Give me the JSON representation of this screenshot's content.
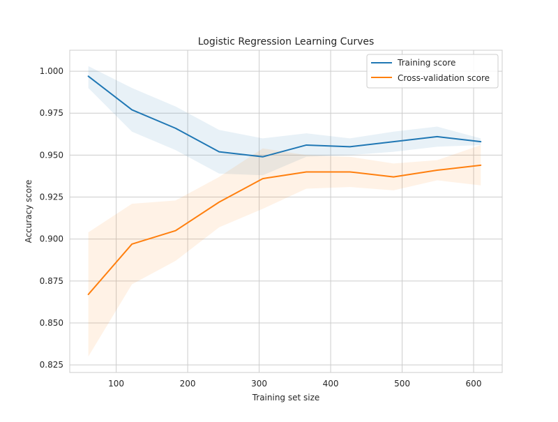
{
  "chart_data": {
    "type": "line",
    "title": "Logistic Regression Learning Curves",
    "xlabel": "Training set size",
    "ylabel": "Accuracy score",
    "xlim": [
      35,
      640
    ],
    "ylim": [
      0.8205,
      1.0125
    ],
    "grid": true,
    "legend_placement": "top-right",
    "x": [
      61,
      122,
      183,
      244,
      305,
      366,
      427,
      488,
      549,
      610
    ],
    "x_ticks": [
      100,
      200,
      300,
      400,
      500,
      600
    ],
    "y_ticks": [
      0.825,
      0.85,
      0.875,
      0.9,
      0.925,
      0.95,
      0.975,
      1.0
    ],
    "x_tick_labels": [
      "100",
      "200",
      "300",
      "400",
      "500",
      "600"
    ],
    "y_tick_labels": [
      "0.825",
      "0.850",
      "0.875",
      "0.900",
      "0.925",
      "0.950",
      "0.975",
      "1.000"
    ],
    "series": [
      {
        "name": "Training score",
        "color": "#1f77b4",
        "values": [
          0.997,
          0.977,
          0.966,
          0.952,
          0.949,
          0.956,
          0.955,
          0.958,
          0.961,
          0.958
        ],
        "lower": [
          0.99,
          0.964,
          0.953,
          0.939,
          0.938,
          0.949,
          0.95,
          0.952,
          0.955,
          0.956
        ],
        "upper": [
          1.003,
          0.99,
          0.979,
          0.965,
          0.96,
          0.963,
          0.96,
          0.964,
          0.967,
          0.96
        ]
      },
      {
        "name": "Cross-validation score",
        "color": "#ff7f0e",
        "values": [
          0.867,
          0.897,
          0.905,
          0.922,
          0.936,
          0.94,
          0.94,
          0.937,
          0.941,
          0.944
        ],
        "lower": [
          0.83,
          0.873,
          0.887,
          0.907,
          0.918,
          0.93,
          0.931,
          0.929,
          0.935,
          0.932
        ],
        "upper": [
          0.904,
          0.921,
          0.923,
          0.937,
          0.954,
          0.95,
          0.949,
          0.945,
          0.947,
          0.956
        ]
      }
    ]
  }
}
